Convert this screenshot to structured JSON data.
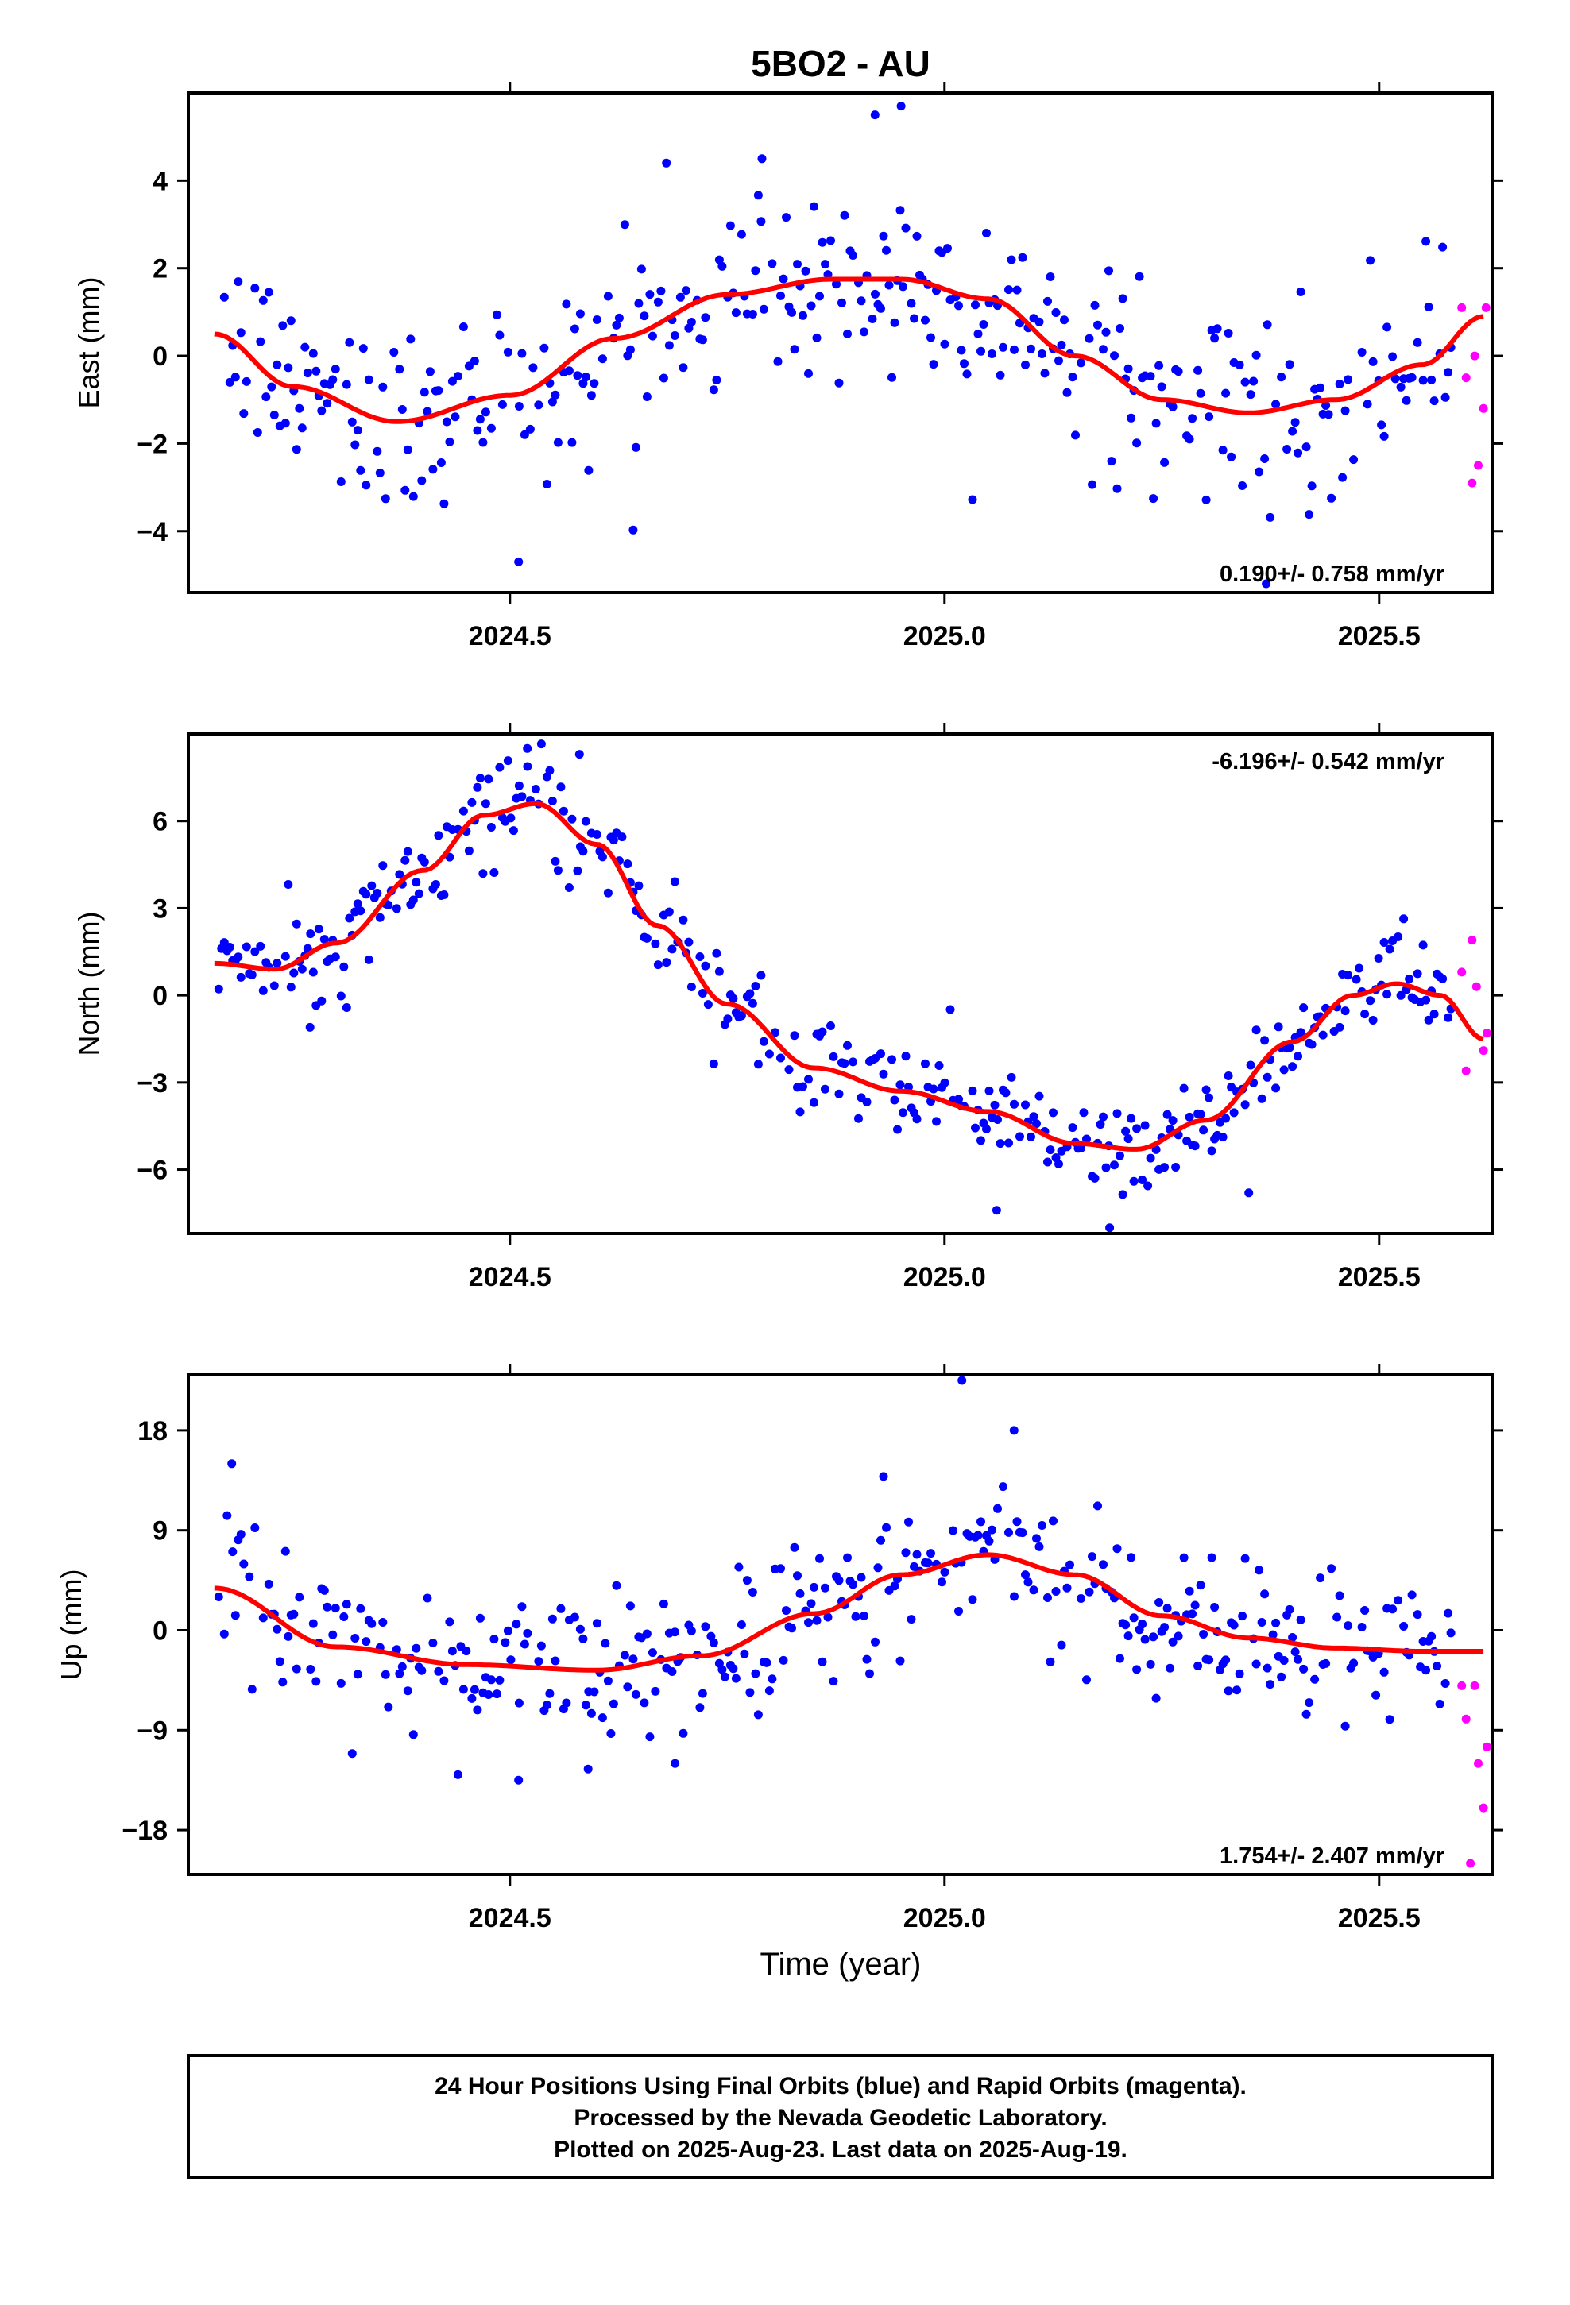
{
  "figure": {
    "title": "5BO2 - AU",
    "xlabel": "Time (year)",
    "colors": {
      "final": "#0000ff",
      "rapid": "#ff00ff",
      "fit": "#ff0000",
      "frame": "#000000"
    },
    "footer_lines": [
      "24 Hour Positions Using Final Orbits (blue) and Rapid Orbits (magenta).",
      "Processed by the Nevada Geodetic Laboratory.",
      "Plotted on 2025-Aug-23. Last data on 2025-Aug-19."
    ]
  },
  "chart_data": [
    {
      "type": "scatter",
      "ylabel": "East (mm)",
      "xlim": [
        2024.13,
        2025.63
      ],
      "ylim": [
        -5.4,
        6.0
      ],
      "xticks": [
        2024.5,
        2025.0,
        2025.5
      ],
      "xtick_labels": [
        "2024.5",
        "2025.0",
        "2025.5"
      ],
      "yticks": [
        -4,
        -2,
        0,
        2,
        4
      ],
      "ytick_labels": [
        "−4",
        "−2",
        "0",
        "2",
        "4"
      ],
      "rate_label": "0.190+/- 0.758 mm/yr",
      "rate_position": "bottom-right",
      "noise": 1.1,
      "fit": {
        "name": "model",
        "x": [
          2024.16,
          2024.25,
          2024.37,
          2024.5,
          2024.62,
          2024.75,
          2024.87,
          2024.95,
          2025.05,
          2025.15,
          2025.25,
          2025.35,
          2025.45,
          2025.55,
          2025.62
        ],
        "y": [
          0.5,
          -0.7,
          -1.5,
          -0.9,
          0.4,
          1.4,
          1.75,
          1.75,
          1.3,
          0.0,
          -1.0,
          -1.3,
          -1.0,
          -0.2,
          0.9
        ]
      },
      "rapid": {
        "x": [
          2025.595,
          2025.6,
          2025.607,
          2025.61,
          2025.614,
          2025.62,
          2025.623
        ],
        "y": [
          1.1,
          -0.5,
          -2.9,
          0.0,
          -2.5,
          -1.2,
          1.1
        ]
      },
      "outliers": {
        "x": [
          2024.51,
          2024.79,
          2024.92,
          2024.95,
          2024.68,
          2025.37
        ],
        "y": [
          -4.7,
          4.5,
          5.5,
          5.7,
          4.4,
          -5.2
        ]
      }
    },
    {
      "type": "scatter",
      "ylabel": "North (mm)",
      "xlim": [
        2024.13,
        2025.63
      ],
      "ylim": [
        -8.2,
        9.0
      ],
      "xticks": [
        2024.5,
        2025.0,
        2025.5
      ],
      "xtick_labels": [
        "2024.5",
        "2025.0",
        "2025.5"
      ],
      "yticks": [
        -6,
        -3,
        0,
        3,
        6
      ],
      "ytick_labels": [
        "−6",
        "−3",
        "0",
        "3",
        "6"
      ],
      "rate_label": "-6.196+/- 0.542 mm/yr",
      "rate_position": "top-right",
      "noise": 0.8,
      "fit": {
        "name": "model",
        "x": [
          2024.16,
          2024.23,
          2024.3,
          2024.4,
          2024.47,
          2024.53,
          2024.6,
          2024.67,
          2024.75,
          2024.85,
          2024.95,
          2025.05,
          2025.15,
          2025.22,
          2025.3,
          2025.4,
          2025.47,
          2025.52,
          2025.57,
          2025.62
        ],
        "y": [
          1.1,
          0.9,
          1.8,
          4.3,
          6.2,
          6.6,
          5.2,
          2.4,
          -0.3,
          -2.5,
          -3.3,
          -4.0,
          -5.1,
          -5.3,
          -4.3,
          -1.6,
          0.0,
          0.4,
          0.0,
          -1.5
        ]
      },
      "rapid": {
        "x": [
          2025.595,
          2025.6,
          2025.607,
          2025.612,
          2025.62,
          2025.624
        ],
        "y": [
          0.8,
          -2.6,
          1.9,
          0.3,
          -1.9,
          -1.3
        ]
      },
      "outliers": {
        "x": [
          2024.27,
          2024.52,
          2024.58,
          2025.06,
          2025.19,
          2025.35
        ],
        "y": [
          -1.1,
          8.5,
          8.3,
          -7.4,
          -8.0,
          -6.8
        ]
      }
    },
    {
      "type": "scatter",
      "ylabel": "Up (mm)",
      "xlim": [
        2024.13,
        2025.63
      ],
      "ylim": [
        -22.0,
        23.0
      ],
      "xticks": [
        2024.5,
        2025.0,
        2025.5
      ],
      "xtick_labels": [
        "2024.5",
        "2025.0",
        "2025.5"
      ],
      "yticks": [
        -18,
        -9,
        0,
        9,
        18
      ],
      "ytick_labels": [
        "−18",
        "−9",
        "0",
        "9",
        "18"
      ],
      "rate_label": "1.754+/- 2.407 mm/yr",
      "rate_position": "bottom-right",
      "noise": 3.6,
      "fit": {
        "name": "model",
        "x": [
          2024.16,
          2024.3,
          2024.45,
          2024.6,
          2024.72,
          2024.85,
          2024.95,
          2025.05,
          2025.15,
          2025.25,
          2025.35,
          2025.45,
          2025.55,
          2025.62
        ],
        "y": [
          3.8,
          -1.5,
          -3.1,
          -3.6,
          -2.3,
          1.5,
          5.0,
          6.8,
          5.0,
          1.3,
          -0.7,
          -1.6,
          -1.9,
          -1.9
        ]
      },
      "rapid": {
        "x": [
          2025.595,
          2025.6,
          2025.605,
          2025.61,
          2025.614,
          2025.62,
          2025.624
        ],
        "y": [
          -5.0,
          -8.0,
          -21.0,
          -5.0,
          -12.0,
          -16.0,
          -10.5
        ]
      },
      "outliers": {
        "x": [
          2024.18,
          2024.51,
          2025.02,
          2025.08,
          2024.59,
          2024.69
        ],
        "y": [
          15.0,
          -13.5,
          22.5,
          18.0,
          -12.5,
          -12.0
        ]
      }
    }
  ]
}
